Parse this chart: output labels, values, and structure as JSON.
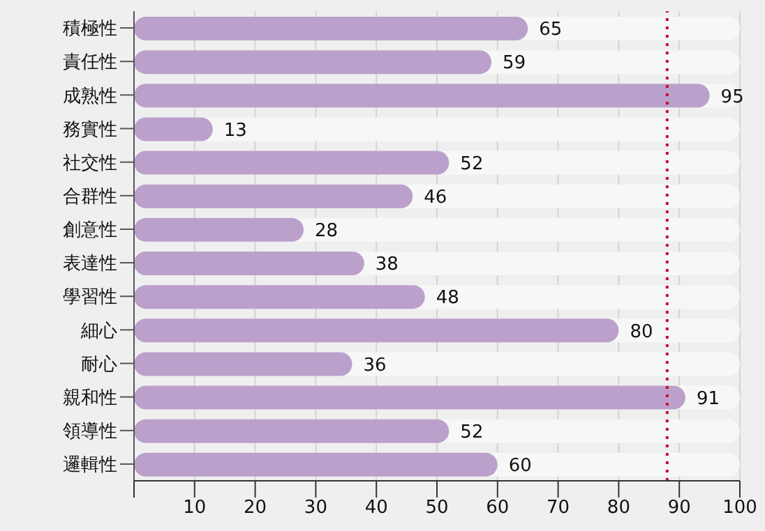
{
  "chart_data": {
    "type": "bar",
    "orientation": "horizontal",
    "categories": [
      "積極性",
      "責任性",
      "成熟性",
      "務實性",
      "社交性",
      "合群性",
      "創意性",
      "表達性",
      "學習性",
      "細心",
      "耐心",
      "親和性",
      "領導性",
      "邏輯性"
    ],
    "values": [
      65,
      59,
      95,
      13,
      52,
      46,
      28,
      38,
      48,
      80,
      36,
      91,
      52,
      60
    ],
    "color": "#bba0cc",
    "data_labels": true,
    "grid": "x",
    "xlim": [
      0,
      100
    ],
    "xticks": [
      {
        "value": 0,
        "label": null
      },
      10,
      20,
      30,
      40,
      50,
      60,
      70,
      80,
      90,
      100
    ],
    "ref_lines": [
      {
        "axis": "x",
        "value": 88,
        "color": "#c8102e",
        "line_style": "dotted"
      }
    ]
  }
}
